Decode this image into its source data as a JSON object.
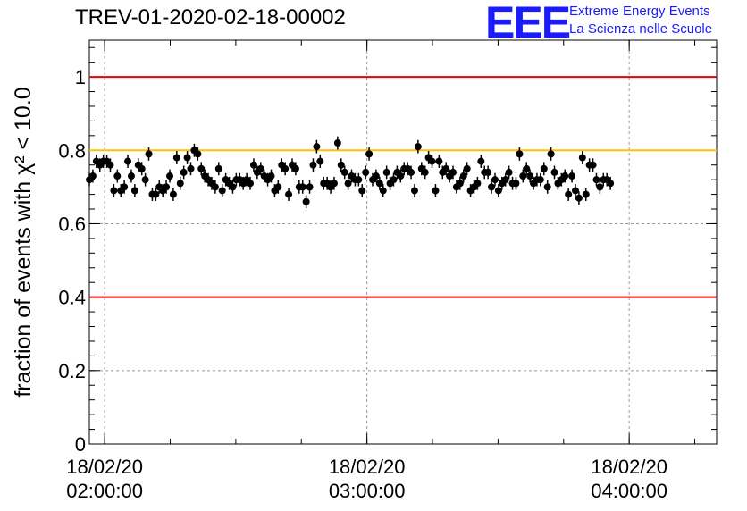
{
  "header": {
    "title": "TREV-01-2020-02-18-00002"
  },
  "logo": {
    "mark": "EEE",
    "line1": "Extreme Energy Events",
    "line2": "La Scienza nelle Scuole"
  },
  "chart_data": {
    "type": "scatter",
    "title": "TREV-01-2020-02-18-00002",
    "ylabel": "fraction of events with χ² < 10.0",
    "ylim": [
      0,
      1.1
    ],
    "xlim": [
      "18/02/20 01:56:30",
      "18/02/20 04:20:00"
    ],
    "x_ticks": [
      {
        "date": "18/02/20",
        "time": "02:00:00"
      },
      {
        "date": "18/02/20",
        "time": "03:00:00"
      },
      {
        "date": "18/02/20",
        "time": "04:00:00"
      }
    ],
    "y_ticks": [
      "0",
      "0.2",
      "0.4",
      "0.6",
      "0.8",
      "1"
    ],
    "grid": true,
    "reference_lines": [
      {
        "y": 1.0,
        "color": "#e60000"
      },
      {
        "y": 0.8,
        "color": "#ffc000"
      },
      {
        "y": 0.4,
        "color": "#e60000"
      }
    ],
    "error_bar": 0.018,
    "series": [
      {
        "x_start": "18/02/20 01:56:30",
        "x_step_seconds": 48,
        "values": [
          0.72,
          0.73,
          0.77,
          0.76,
          0.77,
          0.77,
          0.76,
          0.69,
          0.73,
          0.69,
          0.7,
          0.77,
          0.73,
          0.69,
          0.76,
          0.75,
          0.72,
          0.79,
          0.68,
          0.68,
          0.7,
          0.69,
          0.7,
          0.73,
          0.68,
          0.78,
          0.71,
          0.74,
          0.78,
          0.75,
          0.8,
          0.79,
          0.75,
          0.73,
          0.72,
          0.71,
          0.7,
          0.75,
          0.69,
          0.72,
          0.71,
          0.7,
          0.72,
          0.72,
          0.71,
          0.72,
          0.71,
          0.76,
          0.74,
          0.75,
          0.73,
          0.72,
          0.73,
          0.69,
          0.7,
          0.76,
          0.75,
          0.68,
          0.76,
          0.75,
          0.7,
          0.7,
          0.66,
          0.7,
          0.76,
          0.81,
          0.77,
          0.71,
          0.71,
          0.7,
          0.71,
          0.82,
          0.76,
          0.74,
          0.71,
          0.73,
          0.72,
          0.72,
          0.69,
          0.74,
          0.79,
          0.72,
          0.73,
          0.71,
          0.69,
          0.74,
          0.71,
          0.72,
          0.74,
          0.73,
          0.75,
          0.75,
          0.74,
          0.69,
          0.81,
          0.75,
          0.74,
          0.78,
          0.77,
          0.69,
          0.77,
          0.74,
          0.75,
          0.73,
          0.74,
          0.7,
          0.71,
          0.73,
          0.75,
          0.69,
          0.7,
          0.71,
          0.77,
          0.74,
          0.74,
          0.7,
          0.72,
          0.69,
          0.71,
          0.72,
          0.74,
          0.71,
          0.71,
          0.79,
          0.73,
          0.75,
          0.73,
          0.71,
          0.72,
          0.72,
          0.75,
          0.7,
          0.79,
          0.74,
          0.71,
          0.72,
          0.73,
          0.68,
          0.73,
          0.69,
          0.67,
          0.78,
          0.68,
          0.76,
          0.76,
          0.72,
          0.7,
          0.72,
          0.72,
          0.71
        ]
      }
    ]
  }
}
